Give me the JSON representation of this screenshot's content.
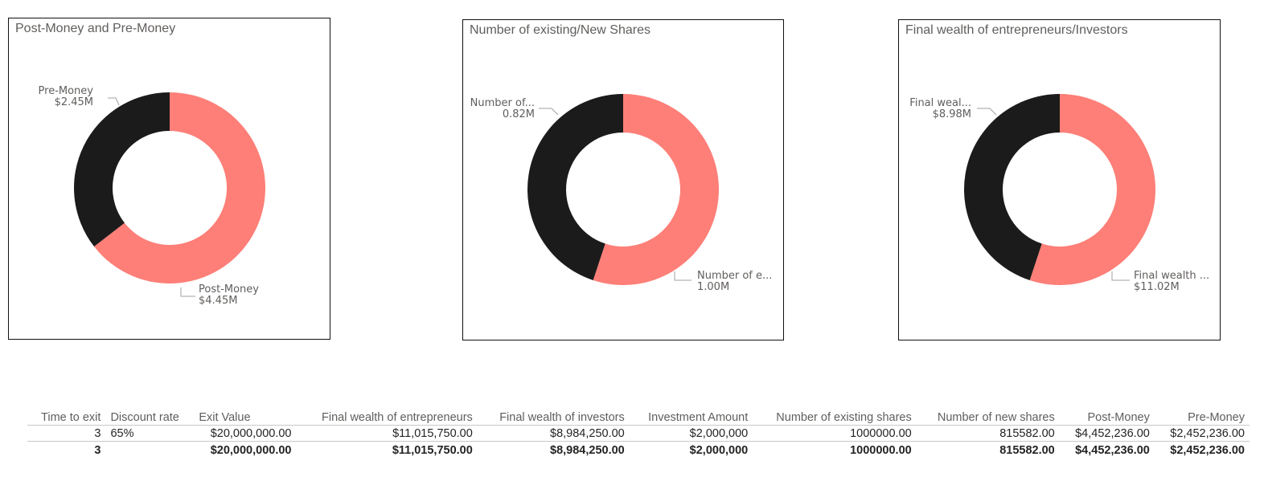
{
  "colors": {
    "primary": "#FD7F78",
    "secondary": "#1C1B1B"
  },
  "chart_data": [
    {
      "type": "pie",
      "title": "Post-Money and Pre-Money",
      "slices": [
        {
          "label": "Post-Money",
          "display_label": "Post-Money",
          "value": 4452236,
          "value_label": "$4.45M"
        },
        {
          "label": "Pre-Money",
          "display_label": "Pre-Money",
          "value": 2452236,
          "value_label": "$2.45M"
        }
      ]
    },
    {
      "type": "pie",
      "title": "Number of existing/New Shares",
      "slices": [
        {
          "label": "Number of existing shares",
          "display_label": "Number of e...",
          "value": 1000000,
          "value_label": "1.00M"
        },
        {
          "label": "Number of new shares",
          "display_label": "Number of...",
          "value": 815582,
          "value_label": "0.82M"
        }
      ]
    },
    {
      "type": "pie",
      "title": "Final wealth of entrepreneurs/Investors",
      "slices": [
        {
          "label": "Final wealth of entrepreneurs",
          "display_label": "Final wealth ...",
          "value": 11015750,
          "value_label": "$11.02M"
        },
        {
          "label": "Final wealth of investors",
          "display_label": "Final weal...",
          "value": 8984250,
          "value_label": "$8.98M"
        }
      ]
    }
  ],
  "table": {
    "headers": [
      "Time to exit",
      "Discount rate",
      "Exit Value",
      "Final wealth of entrepreneurs",
      "Final wealth of investors",
      "Investment Amount",
      "Number of existing shares",
      "Number of new shares",
      "Post-Money",
      "Pre-Money"
    ],
    "row": [
      "3",
      "65%",
      "$20,000,000.00",
      "$11,015,750.00",
      "$8,984,250.00",
      "$2,000,000",
      "1000000.00",
      "815582.00",
      "$4,452,236.00",
      "$2,452,236.00"
    ],
    "total": [
      "3",
      "",
      "$20,000,000.00",
      "$11,015,750.00",
      "$8,984,250.00",
      "$2,000,000",
      "1000000.00",
      "815582.00",
      "$4,452,236.00",
      "$2,452,236.00"
    ]
  }
}
